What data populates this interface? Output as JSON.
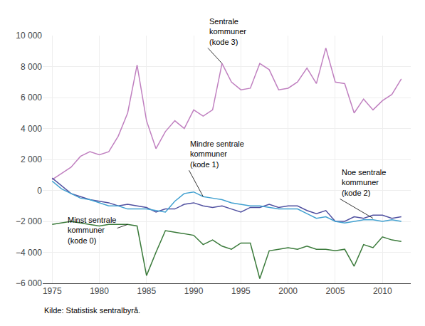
{
  "chart_data": {
    "type": "line",
    "x": [
      1975,
      1976,
      1977,
      1978,
      1979,
      1980,
      1981,
      1982,
      1983,
      1984,
      1985,
      1986,
      1987,
      1988,
      1989,
      1990,
      1991,
      1992,
      1993,
      1994,
      1995,
      1996,
      1997,
      1998,
      1999,
      2000,
      2001,
      2002,
      2003,
      2004,
      2005,
      2006,
      2007,
      2008,
      2009,
      2010,
      2011,
      2012
    ],
    "series": [
      {
        "color": "#c080c0",
        "values": [
          700,
          1100,
          1500,
          2200,
          2500,
          2300,
          2500,
          3500,
          5000,
          8100,
          4500,
          2700,
          3800,
          4500,
          4000,
          5200,
          4800,
          5200,
          8200,
          7000,
          6500,
          6600,
          8200,
          7800,
          6500,
          6600,
          7000,
          7900,
          6900,
          9200,
          7000,
          6900,
          5000,
          5900,
          5200,
          5800,
          6200,
          7200
        ]
      },
      {
        "color": "#5050a0",
        "values": [
          800,
          300,
          -200,
          -400,
          -600,
          -700,
          -800,
          -1000,
          -900,
          -1000,
          -1100,
          -1400,
          -1200,
          -1200,
          -900,
          -800,
          -1000,
          -1100,
          -1000,
          -1200,
          -1400,
          -1100,
          -1100,
          -900,
          -1100,
          -1000,
          -1000,
          -1300,
          -1500,
          -1300,
          -2000,
          -2000,
          -1700,
          -1800,
          -1600,
          -1600,
          -1800,
          -1700
        ]
      },
      {
        "color": "#40a0d0",
        "values": [
          600,
          100,
          -200,
          -500,
          -600,
          -800,
          -1000,
          -1000,
          -1200,
          -1200,
          -1200,
          -1300,
          -1400,
          -700,
          -200,
          -100,
          -400,
          -500,
          -600,
          -800,
          -900,
          -1000,
          -1000,
          -1100,
          -1200,
          -1200,
          -1200,
          -1500,
          -1800,
          -1700,
          -2000,
          -2100,
          -2000,
          -1900,
          -1900,
          -2000,
          -1900,
          -2000
        ]
      },
      {
        "color": "#3a7a3a",
        "values": [
          -2200,
          -2100,
          -2000,
          -2100,
          -2200,
          -2300,
          -2200,
          -2200,
          -2200,
          -2300,
          -5500,
          -4000,
          -2600,
          -2700,
          -2800,
          -2900,
          -3500,
          -3200,
          -3600,
          -3800,
          -3400,
          -3400,
          -5700,
          -3900,
          -3800,
          -3700,
          -3800,
          -3600,
          -3800,
          -3800,
          -3900,
          -3800,
          -4900,
          -3500,
          -3700,
          -3000,
          -3200,
          -3300
        ]
      }
    ],
    "xlim": [
      1974,
      2013
    ],
    "xticks": [
      1975,
      1980,
      1985,
      1990,
      1995,
      2000,
      2005,
      2010
    ],
    "ylim": [
      -6000,
      10000
    ],
    "yticks": [
      {
        "value": -6000,
        "label": "−6 000"
      },
      {
        "value": -4000,
        "label": "−4 000"
      },
      {
        "value": -2000,
        "label": "−2 000"
      },
      0,
      {
        "value": 2000,
        "label": "2 000"
      },
      {
        "value": 4000,
        "label": "4 000"
      },
      {
        "value": 6000,
        "label": "6 000"
      },
      {
        "value": 8000,
        "label": "8 000"
      },
      {
        "value": 10000,
        "label": "10 000"
      }
    ],
    "grid": true,
    "annotations": [
      {
        "text": "Sentrale\nkommuner\n(kode 3)",
        "xy": [
          1993,
          8200
        ],
        "xytext": [
          1991.5,
          9200
        ]
      },
      {
        "text": "Noe sentrale\nkommuner\n(kode 2)",
        "xy": [
          2009,
          -1800
        ],
        "xytext": [
          2005.5,
          -550
        ]
      },
      {
        "text": "Mindre sentrale\nkommuner\n(kode 1)",
        "xy": [
          1991,
          -400
        ],
        "xytext": [
          1989.5,
          1300
        ]
      },
      {
        "text": "Minst sentrale\nkommuner\n(kode 0)",
        "xy": [
          1983,
          -2200
        ],
        "xytext": [
          1976.5,
          -3600
        ]
      }
    ],
    "source": "Kilde: Statistisk sentralbyrå."
  }
}
